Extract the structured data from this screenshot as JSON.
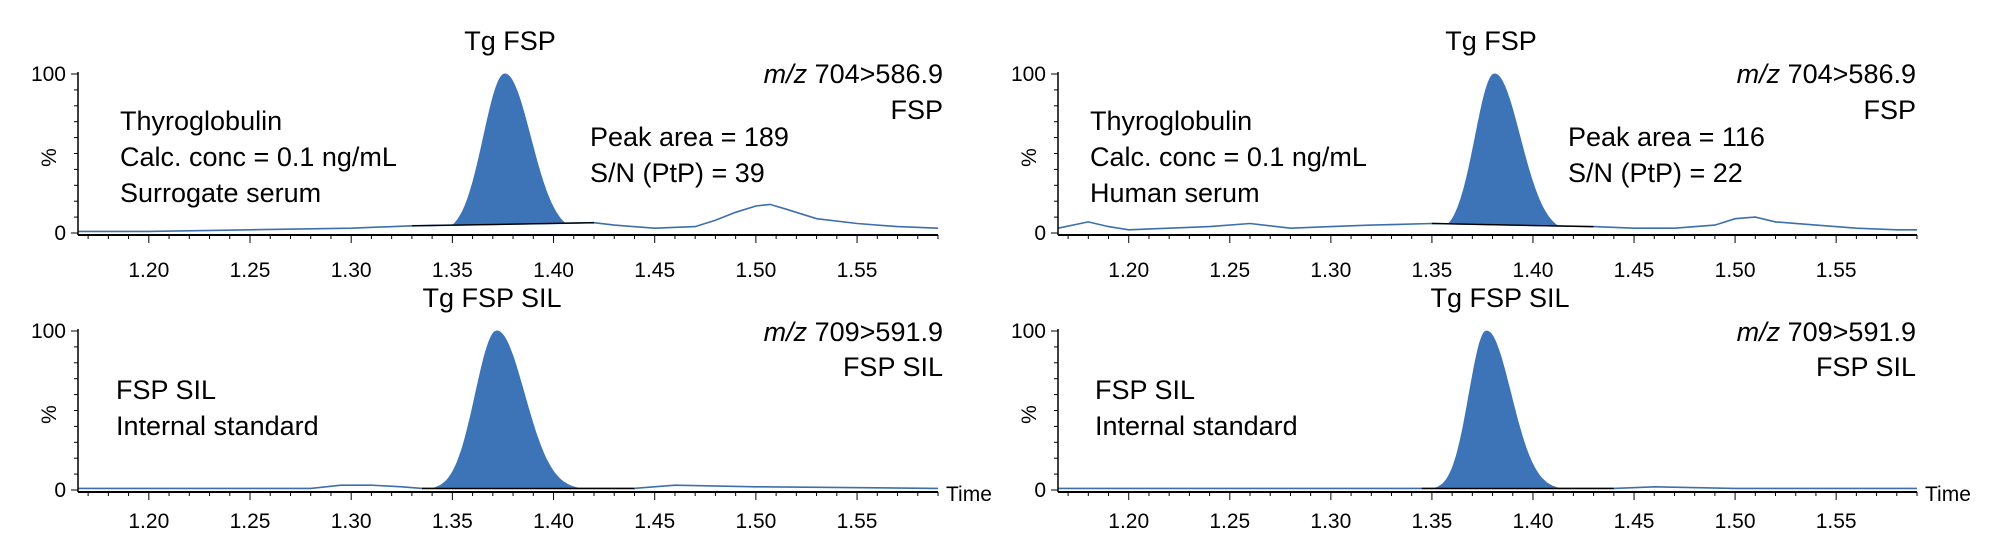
{
  "colors": {
    "peak_fill": "#3d74b8",
    "trace_line": "#3d6fae",
    "axis": "#000000",
    "baseline": "#000000"
  },
  "chart_data": [
    {
      "type": "line",
      "id": "top-left",
      "title": "Tg FSP",
      "mz_prefix": "m/z",
      "mz_value": " 704>586.9",
      "transition_name": "FSP",
      "annotation_lines": [
        "Thyroglobulin",
        "Calc. conc = 0.1 ng/mL",
        "Surrogate serum"
      ],
      "peak_lines": [
        "Peak area = 189",
        "S/N (PtP) = 39"
      ],
      "xlabel": "",
      "ylabel": "%",
      "xlim": [
        1.165,
        1.59
      ],
      "ylim": [
        0,
        100
      ],
      "x_ticks": [
        "1.20",
        "1.25",
        "1.30",
        "1.35",
        "1.40",
        "1.45",
        "1.50",
        "1.55"
      ],
      "y_ticks": [
        "0",
        "100"
      ],
      "peak": {
        "start": 1.33,
        "apex": 1.376,
        "end": 1.42,
        "height": 100,
        "sigma_left": 0.0105,
        "sigma_right": 0.0125
      },
      "integration_baseline": [
        [
          1.33,
          4.5
        ],
        [
          1.42,
          6.5
        ]
      ],
      "trace": {
        "x": [
          1.165,
          1.2,
          1.25,
          1.3,
          1.33,
          1.42,
          1.43,
          1.45,
          1.47,
          1.48,
          1.49,
          1.5,
          1.507,
          1.515,
          1.53,
          1.55,
          1.57,
          1.59
        ],
        "y": [
          1,
          1,
          2,
          3,
          4.5,
          6.5,
          5,
          3,
          4,
          8,
          13,
          17,
          18,
          15,
          9,
          6,
          4,
          3
        ]
      }
    },
    {
      "type": "line",
      "id": "top-right",
      "title": "Tg FSP",
      "mz_prefix": "m/z",
      "mz_value": " 704>586.9",
      "transition_name": "FSP",
      "annotation_lines": [
        "Thyroglobulin",
        "Calc. conc = 0.1 ng/mL",
        "Human serum"
      ],
      "peak_lines": [
        "Peak area = 116",
        "S/N (PtP) = 22"
      ],
      "xlabel": "",
      "ylabel": "%",
      "xlim": [
        1.165,
        1.59
      ],
      "ylim": [
        0,
        100
      ],
      "x_ticks": [
        "1.20",
        "1.25",
        "1.30",
        "1.35",
        "1.40",
        "1.45",
        "1.50",
        "1.55"
      ],
      "y_ticks": [
        "0",
        "100"
      ],
      "peak": {
        "start": 1.35,
        "apex": 1.381,
        "end": 1.43,
        "height": 100,
        "sigma_left": 0.0095,
        "sigma_right": 0.0125
      },
      "integration_baseline": [
        [
          1.35,
          6
        ],
        [
          1.43,
          4
        ]
      ],
      "trace": {
        "x": [
          1.165,
          1.18,
          1.19,
          1.2,
          1.22,
          1.24,
          1.26,
          1.28,
          1.3,
          1.32,
          1.35,
          1.43,
          1.45,
          1.47,
          1.49,
          1.5,
          1.51,
          1.52,
          1.54,
          1.56,
          1.58,
          1.59
        ],
        "y": [
          3,
          7,
          4,
          2,
          3,
          4,
          6,
          3,
          4,
          5,
          6,
          4,
          3,
          3,
          5,
          9,
          10,
          7,
          5,
          3,
          2,
          2
        ]
      }
    },
    {
      "type": "line",
      "id": "bottom-left",
      "title": "Tg FSP SIL",
      "mz_prefix": "m/z",
      "mz_value": " 709>591.9",
      "transition_name": "FSP SIL",
      "annotation_lines": [
        "FSP SIL",
        "Internal standard"
      ],
      "peak_lines": [],
      "xlabel": "Time",
      "ylabel": "%",
      "xlim": [
        1.165,
        1.59
      ],
      "ylim": [
        0,
        100
      ],
      "x_ticks": [
        "1.20",
        "1.25",
        "1.30",
        "1.35",
        "1.40",
        "1.45",
        "1.50",
        "1.55"
      ],
      "y_ticks": [
        "0",
        "100"
      ],
      "peak": {
        "start": 1.335,
        "apex": 1.372,
        "end": 1.44,
        "height": 100,
        "sigma_left": 0.0105,
        "sigma_right": 0.0135
      },
      "integration_baseline": [
        [
          1.335,
          1
        ],
        [
          1.44,
          1
        ]
      ],
      "trace": {
        "x": [
          1.165,
          1.28,
          1.295,
          1.31,
          1.325,
          1.335,
          1.44,
          1.46,
          1.5,
          1.59
        ],
        "y": [
          1,
          1,
          3,
          3,
          2,
          1,
          1,
          3,
          2,
          1
        ]
      }
    },
    {
      "type": "line",
      "id": "bottom-right",
      "title": "Tg FSP SIL",
      "mz_prefix": "m/z",
      "mz_value": " 709>591.9",
      "transition_name": "FSP SIL",
      "annotation_lines": [
        "FSP SIL",
        "Internal standard"
      ],
      "peak_lines": [],
      "xlabel": "Time",
      "ylabel": "%",
      "xlim": [
        1.165,
        1.59
      ],
      "ylim": [
        0,
        100
      ],
      "x_ticks": [
        "1.20",
        "1.25",
        "1.30",
        "1.35",
        "1.40",
        "1.45",
        "1.50",
        "1.55"
      ],
      "y_ticks": [
        "0",
        "100"
      ],
      "peak": {
        "start": 1.345,
        "apex": 1.377,
        "end": 1.44,
        "height": 100,
        "sigma_left": 0.0085,
        "sigma_right": 0.012
      },
      "integration_baseline": [
        [
          1.345,
          1
        ],
        [
          1.44,
          1
        ]
      ],
      "trace": {
        "x": [
          1.165,
          1.3,
          1.345,
          1.44,
          1.46,
          1.5,
          1.59
        ],
        "y": [
          1,
          1,
          1,
          1,
          2,
          1,
          1
        ]
      }
    }
  ]
}
